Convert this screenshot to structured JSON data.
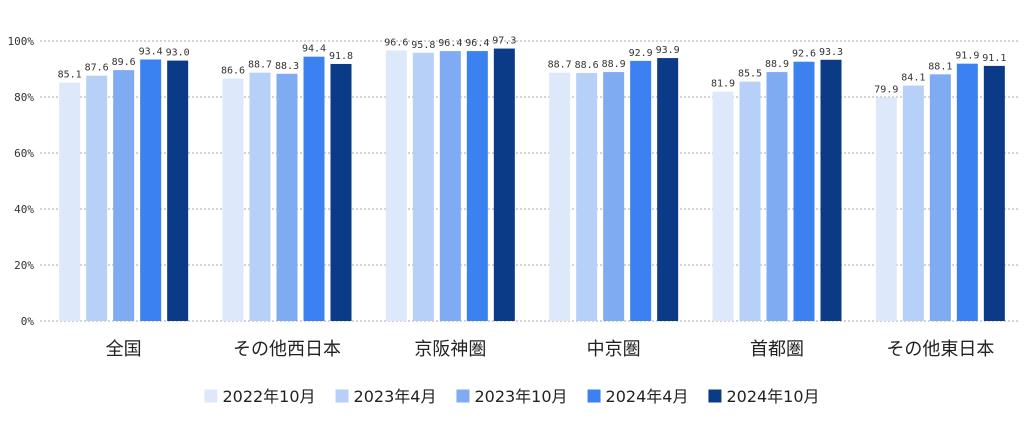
{
  "chart_data": {
    "type": "bar",
    "categories": [
      "全国",
      "その他西日本",
      "京阪神圏",
      "中京圏",
      "首都圏",
      "その他東日本"
    ],
    "series": [
      {
        "name": "2022年10月",
        "color": "#dde8fa",
        "values": [
          85.1,
          86.6,
          96.6,
          88.7,
          81.9,
          79.9
        ]
      },
      {
        "name": "2023年4月",
        "color": "#b7d0f7",
        "values": [
          87.6,
          88.7,
          95.8,
          88.6,
          85.5,
          84.1
        ]
      },
      {
        "name": "2023年10月",
        "color": "#7fabf3",
        "values": [
          89.6,
          88.3,
          96.4,
          88.9,
          88.9,
          88.1
        ]
      },
      {
        "name": "2024年4月",
        "color": "#3b82f0",
        "values": [
          93.4,
          94.4,
          96.4,
          92.9,
          92.6,
          91.9
        ]
      },
      {
        "name": "2024年10月",
        "color": "#0b3a86",
        "values": [
          93.0,
          91.8,
          97.3,
          93.9,
          93.3,
          91.1
        ]
      }
    ],
    "y_ticks": [
      "0%",
      "20%",
      "40%",
      "60%",
      "80%",
      "100%"
    ],
    "ylim": [
      0,
      100
    ],
    "grid": true,
    "legend_position": "bottom"
  }
}
